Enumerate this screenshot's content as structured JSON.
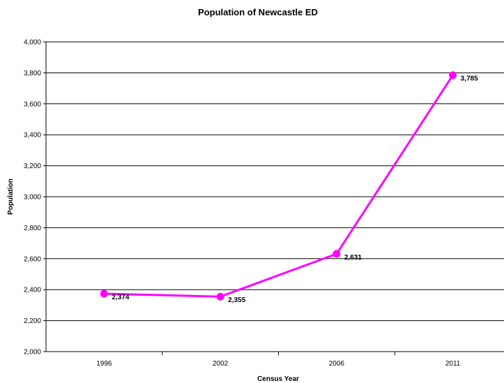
{
  "chart_data": {
    "type": "line",
    "title": "Population of Newcastle ED",
    "xlabel": "Census Year",
    "ylabel": "Population",
    "categories": [
      "1996",
      "2002",
      "2006",
      "2011"
    ],
    "series": [
      {
        "values": [
          2374,
          2355,
          2631,
          3785
        ],
        "labels": [
          "2,374",
          "2,355",
          "2,631",
          "3,785"
        ]
      }
    ],
    "ylim": [
      2000,
      4000
    ],
    "yticks": [
      2000,
      2200,
      2400,
      2600,
      2800,
      3000,
      3200,
      3400,
      3600,
      3800,
      4000
    ],
    "ytick_labels": [
      "2,000",
      "2,200",
      "2,400",
      "2,600",
      "2,800",
      "3,000",
      "3,200",
      "3,400",
      "3,600",
      "3,800",
      "4,000"
    ],
    "grid": true,
    "legend": "none",
    "line_color": "#ff00ff"
  }
}
